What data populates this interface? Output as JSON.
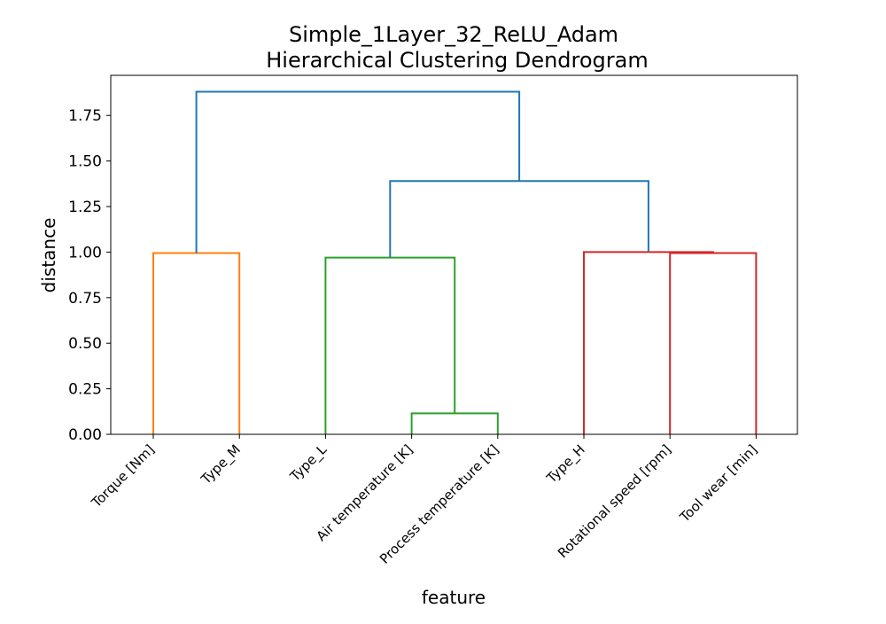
{
  "chart_data": {
    "type": "dendrogram",
    "title": "Simple_1Layer_32_ReLU_Adam",
    "subtitle": "Hierarchical Clustering Dendrogram",
    "xlabel": "feature",
    "ylabel": "distance",
    "ylim": [
      0,
      1.97
    ],
    "y_ticks": [
      0.0,
      0.25,
      0.5,
      0.75,
      1.0,
      1.25,
      1.5,
      1.75
    ],
    "y_tick_labels": [
      "0.00",
      "0.25",
      "0.50",
      "0.75",
      "1.00",
      "1.25",
      "1.50",
      "1.75"
    ],
    "leaves": [
      "Torque [Nm]",
      "Type_M",
      "Type_L",
      "Air temperature [K]",
      "Process temperature [K]",
      "Type_H",
      "Rotational speed [rpm]",
      "Tool wear [min]"
    ],
    "colors": {
      "orange": "#ff7f0e",
      "green": "#2ca02c",
      "red": "#d62728",
      "blue": "#1f77b4",
      "axes": "#000000"
    },
    "links": [
      {
        "left_x": 0.0,
        "left_y": 0.0,
        "right_x": 1.0,
        "right_y": 0.0,
        "height": 0.995,
        "color": "orange"
      },
      {
        "left_x": 3.0,
        "left_y": 0.0,
        "right_x": 4.0,
        "right_y": 0.0,
        "height": 0.115,
        "color": "green"
      },
      {
        "left_x": 2.0,
        "left_y": 0.0,
        "right_x": 3.5,
        "right_y": 0.115,
        "height": 0.97,
        "color": "green"
      },
      {
        "left_x": 6.0,
        "left_y": 0.0,
        "right_x": 7.0,
        "right_y": 0.0,
        "height": 0.995,
        "color": "red"
      },
      {
        "left_x": 5.0,
        "left_y": 0.0,
        "right_x": 6.5,
        "right_y": 0.995,
        "height": 1.0,
        "color": "red"
      },
      {
        "left_x": 2.75,
        "left_y": 0.97,
        "right_x": 5.75,
        "right_y": 1.0,
        "height": 1.39,
        "color": "blue"
      },
      {
        "left_x": 0.5,
        "left_y": 0.995,
        "right_x": 4.25,
        "right_y": 1.39,
        "height": 1.88,
        "color": "blue"
      }
    ]
  }
}
